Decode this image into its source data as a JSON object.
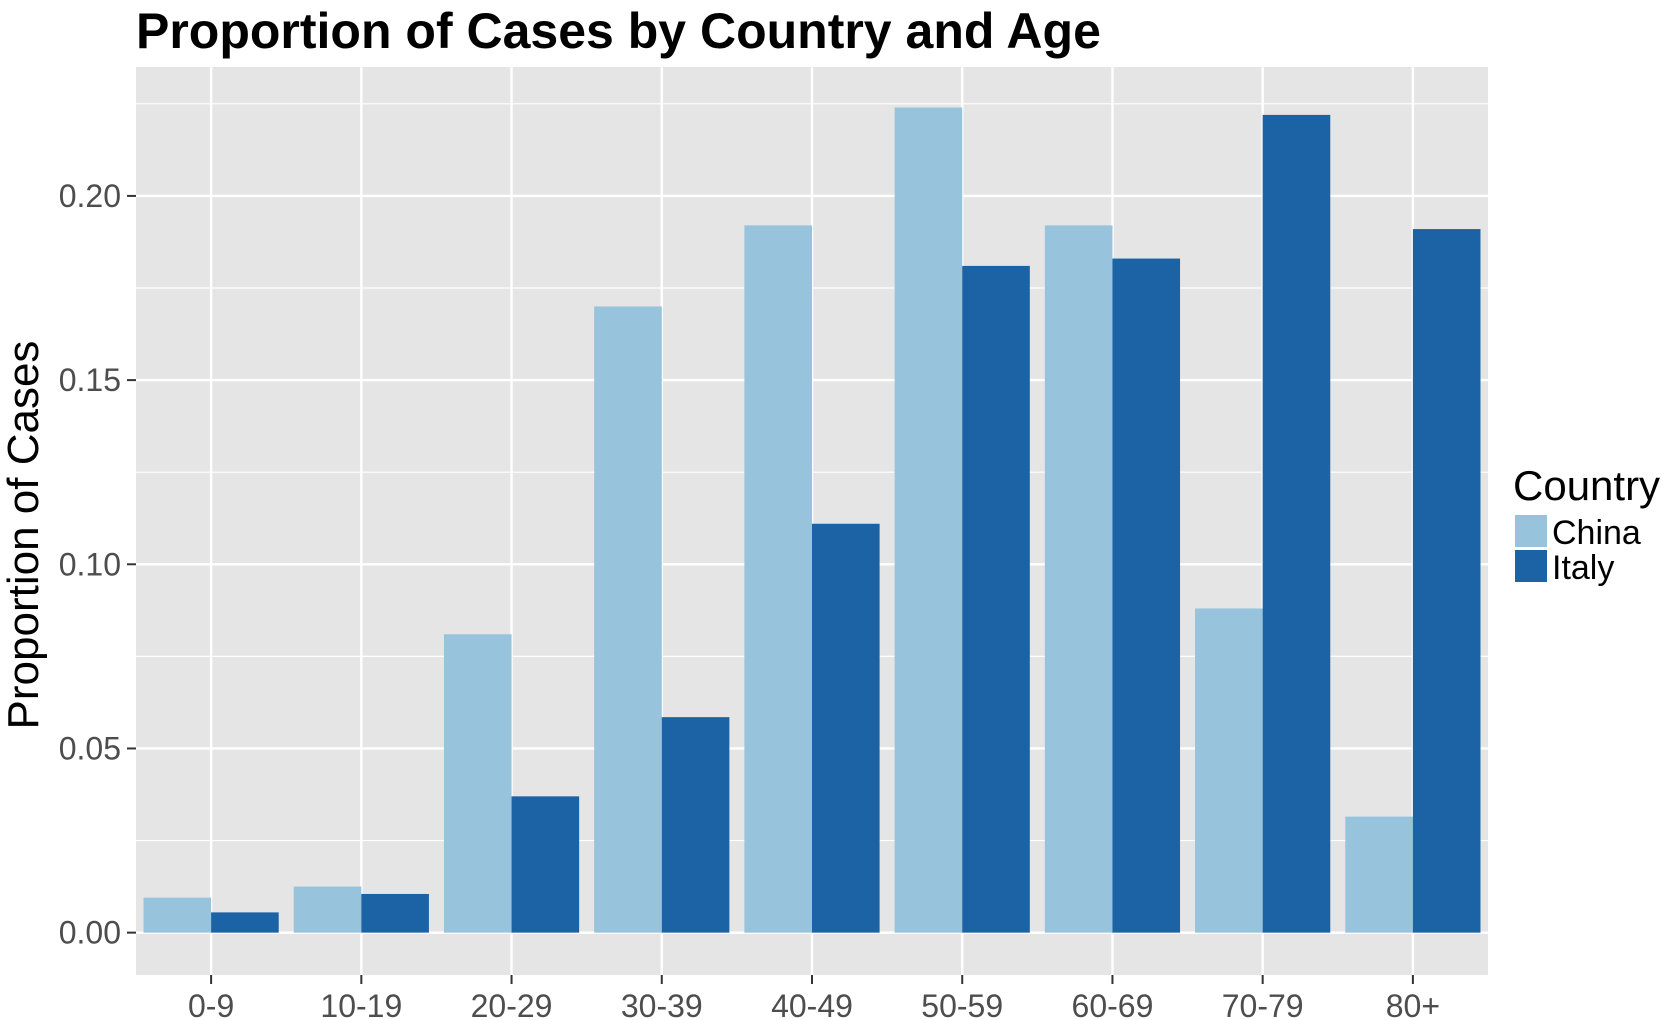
{
  "chart_data": {
    "type": "bar",
    "title": "Proportion of Cases by Country and Age",
    "xlabel": "",
    "ylabel": "Proportion of Cases",
    "categories": [
      "0-9",
      "10-19",
      "20-29",
      "30-39",
      "40-49",
      "50-59",
      "60-69",
      "70-79",
      "80+"
    ],
    "series": [
      {
        "name": "China",
        "color": "#97C3DC",
        "values": [
          0.0095,
          0.0125,
          0.081,
          0.17,
          0.192,
          0.224,
          0.192,
          0.088,
          0.0315
        ]
      },
      {
        "name": "Italy",
        "color": "#1C63A5",
        "values": [
          0.0055,
          0.0105,
          0.037,
          0.0585,
          0.111,
          0.181,
          0.183,
          0.222,
          0.191
        ]
      }
    ],
    "ylim": [
      -0.0115,
      0.235
    ],
    "yticks": [
      0.0,
      0.05,
      0.1,
      0.15,
      0.2
    ],
    "ytick_labels": [
      "0.00",
      "0.05",
      "0.10",
      "0.15",
      "0.20"
    ],
    "grid": true,
    "legend": {
      "title": "Country",
      "placement": "right"
    },
    "panel_background": "#E5E5E5",
    "grid_color": "#FFFFFF",
    "tick_label_color": "#4D4D4D"
  }
}
